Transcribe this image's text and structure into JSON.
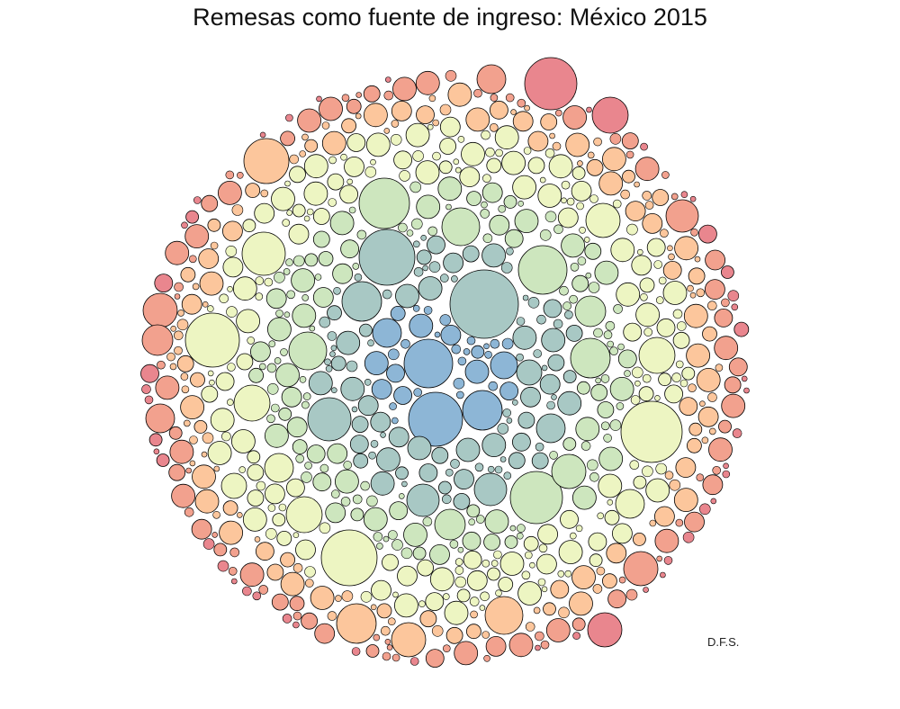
{
  "chart_data": {
    "type": "bubble-pack",
    "title": "Remesas como fuente de ingreso: México 2015",
    "signature": "D.F.S.",
    "legend": "none",
    "grid": false,
    "color_scale": "Spectral (blue = center, green, yellow, orange, red = edge)",
    "palette": [
      "#8DB6D6",
      "#A8C8C4",
      "#CDE6BE",
      "#EDF5C2",
      "#FCC69C",
      "#F2A18E",
      "#E9868E"
    ],
    "stroke_color": "#000000"
  }
}
